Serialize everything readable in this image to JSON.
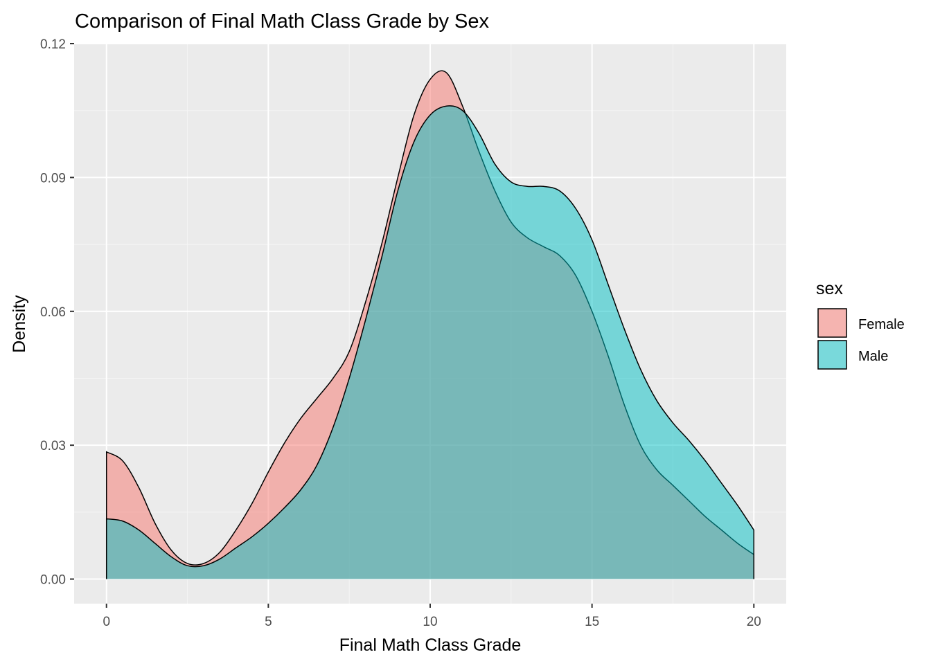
{
  "chart_data": {
    "type": "area",
    "title": "Comparison of Final Math Class Grade by Sex",
    "xlabel": "Final Math Class Grade",
    "ylabel": "Density",
    "xlim": [
      -1,
      21
    ],
    "ylim": [
      -0.0055,
      0.12
    ],
    "x_ticks": [
      0,
      5,
      10,
      15,
      20
    ],
    "x_tick_labels": [
      "0",
      "5",
      "10",
      "15",
      "20"
    ],
    "y_ticks": [
      0.0,
      0.03,
      0.06,
      0.09,
      0.12
    ],
    "y_tick_labels": [
      "0.00",
      "0.03",
      "0.06",
      "0.09",
      "0.12"
    ],
    "grid": true,
    "legend": {
      "title": "sex",
      "position": "right"
    },
    "x": [
      0,
      0.5,
      1,
      1.5,
      2,
      2.5,
      3,
      3.5,
      4,
      4.5,
      5,
      5.5,
      6,
      6.5,
      7,
      7.5,
      8,
      8.5,
      9,
      9.5,
      10,
      10.5,
      11,
      11.5,
      12,
      12.5,
      13,
      13.5,
      14,
      14.5,
      15,
      15.5,
      16,
      16.5,
      17,
      17.5,
      18,
      18.5,
      19,
      19.5,
      20
    ],
    "series": [
      {
        "name": "Female",
        "color": "#F8766D",
        "values": [
          0.0285,
          0.0265,
          0.0205,
          0.0125,
          0.0065,
          0.0035,
          0.0035,
          0.006,
          0.011,
          0.017,
          0.024,
          0.0305,
          0.036,
          0.0405,
          0.045,
          0.051,
          0.062,
          0.075,
          0.09,
          0.104,
          0.112,
          0.1135,
          0.106,
          0.096,
          0.087,
          0.08,
          0.0765,
          0.0745,
          0.0725,
          0.068,
          0.06,
          0.05,
          0.039,
          0.03,
          0.0245,
          0.021,
          0.0175,
          0.014,
          0.011,
          0.008,
          0.0055
        ]
      },
      {
        "name": "Male",
        "color": "#00BFC4",
        "values": [
          0.0135,
          0.013,
          0.011,
          0.008,
          0.005,
          0.003,
          0.003,
          0.0045,
          0.007,
          0.0095,
          0.0125,
          0.016,
          0.02,
          0.0255,
          0.034,
          0.045,
          0.058,
          0.072,
          0.087,
          0.098,
          0.104,
          0.106,
          0.105,
          0.1,
          0.093,
          0.089,
          0.088,
          0.088,
          0.087,
          0.083,
          0.076,
          0.066,
          0.056,
          0.047,
          0.04,
          0.035,
          0.031,
          0.0265,
          0.0215,
          0.0165,
          0.011
        ]
      }
    ]
  }
}
